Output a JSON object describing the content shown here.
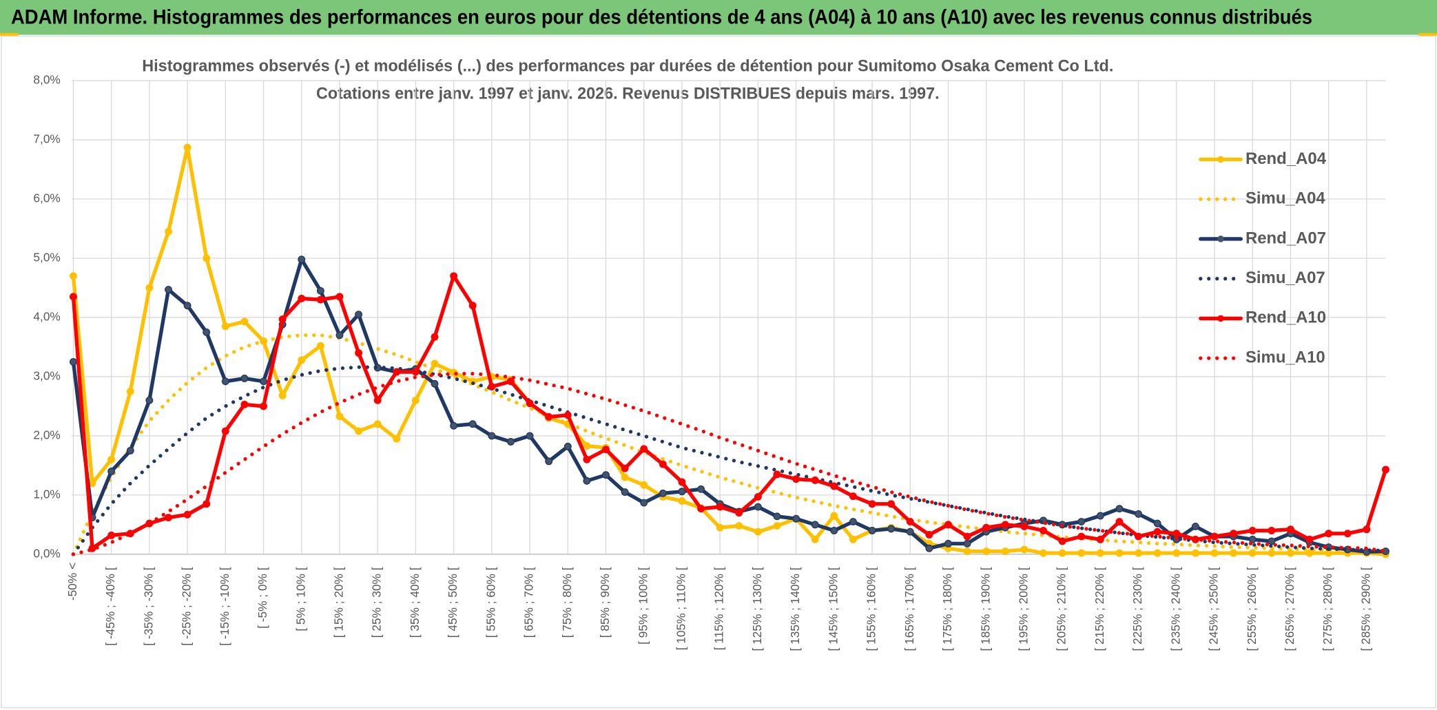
{
  "header": {
    "title": "ADAM Informe. Histogrammes des performances en euros pour des détentions de 4 ans (A04) à 10 ans (A10) avec les revenus connus distribués"
  },
  "chart_data": {
    "type": "line",
    "title": "Histogrammes observés (-) et modélisés (...) des performances par durées de détention pour Sumitomo Osaka Cement Co Ltd.",
    "subtitle": "Cotations entre janv. 1997 et janv. 2026. Revenus DISTRIBUES depuis mars. 1997.",
    "categories": [
      "-50% <",
      null,
      "[ -45% ; -40% [",
      null,
      "[ -35% ; -30% [",
      null,
      "[ -25% ; -20% [",
      null,
      "[ -15% ; -10% [",
      null,
      "[ -5% ; 0% [",
      null,
      "[ 5% ; 10% [",
      null,
      "[ 15% ; 20% [",
      null,
      "[ 25% ; 30% [",
      null,
      "[ 35% ; 40% [",
      null,
      "[ 45% ; 50% [",
      null,
      "[ 55% ; 60% [",
      null,
      "[ 65% ; 70% [",
      null,
      "[ 75% ; 80% [",
      null,
      "[ 85% ; 90% [",
      null,
      "[ 95% ; 100% [",
      null,
      "[ 105% ; 110% [",
      null,
      "[ 115% ; 120% [",
      null,
      "[ 125% ; 130% [",
      null,
      "[ 135% ; 140% [",
      null,
      "[ 145% ; 150% [",
      null,
      "[ 155% ; 160% [",
      null,
      "[ 165% ; 170% [",
      null,
      "[ 175% ; 180% [",
      null,
      "[ 185% ; 190% [",
      null,
      "[ 195% ; 200% [",
      null,
      "[ 205% ; 210% [",
      null,
      "[ 215% ; 220% [",
      null,
      "[ 225% ; 230% [",
      null,
      "[ 235% ; 240% [",
      null,
      "[ 245% ; 250% [",
      null,
      "[ 255% ; 260% [",
      null,
      "[ 265% ; 270% [",
      null,
      "[ 275% ; 280% [",
      null,
      "[ 285% ; 290% [",
      null
    ],
    "series": [
      {
        "name": "Rend_A04",
        "color": "#FFC000",
        "line_style": "solid",
        "markers": true,
        "values": [
          4.7,
          1.2,
          1.6,
          2.75,
          4.5,
          5.45,
          6.87,
          5.0,
          3.85,
          3.93,
          3.6,
          2.68,
          3.28,
          3.52,
          2.33,
          2.08,
          2.2,
          1.95,
          2.6,
          3.22,
          3.07,
          2.92,
          3.0,
          2.95,
          2.55,
          2.3,
          2.2,
          1.83,
          1.8,
          1.3,
          1.17,
          0.97,
          0.9,
          0.78,
          0.45,
          0.48,
          0.38,
          0.48,
          0.6,
          0.25,
          0.65,
          0.25,
          0.4,
          0.45,
          0.38,
          0.18,
          0.1,
          0.05,
          0.05,
          0.05,
          0.08,
          0.02,
          0.02,
          0.02,
          0.02,
          0.02,
          0.02,
          0.02,
          0.02,
          0.02,
          0.02,
          0.02,
          0.02,
          0.02,
          0.02,
          0.02,
          0.02,
          0.02,
          0.02,
          0
        ]
      },
      {
        "name": "Simu_A04",
        "color": "#FFC000",
        "line_style": "dotted",
        "markers": false,
        "values": [
          0,
          0.7,
          1.3,
          1.8,
          2.25,
          2.6,
          2.9,
          3.15,
          3.35,
          3.5,
          3.6,
          3.67,
          3.7,
          3.7,
          3.65,
          3.57,
          3.47,
          3.37,
          3.25,
          3.13,
          3.0,
          2.87,
          2.74,
          2.6,
          2.47,
          2.34,
          2.21,
          2.08,
          1.96,
          1.84,
          1.72,
          1.61,
          1.5,
          1.4,
          1.3,
          1.21,
          1.12,
          1.04,
          0.96,
          0.89,
          0.82,
          0.76,
          0.7,
          0.64,
          0.59,
          0.54,
          0.5,
          0.46,
          0.42,
          0.38,
          0.35,
          0.32,
          0.29,
          0.27,
          0.24,
          0.22,
          0.2,
          0.18,
          0.17,
          0.15,
          0.14,
          0.12,
          0.11,
          0.1,
          0.09,
          0.08,
          0.07,
          0.06,
          0.05,
          0.05
        ]
      },
      {
        "name": "Rend_A07",
        "color": "#1F3864",
        "line_style": "solid",
        "markers": true,
        "values": [
          3.25,
          0.62,
          1.4,
          1.75,
          2.6,
          4.47,
          4.2,
          3.75,
          2.92,
          2.97,
          2.92,
          3.88,
          4.98,
          4.45,
          3.7,
          4.05,
          3.15,
          3.08,
          3.13,
          2.88,
          2.17,
          2.2,
          2.0,
          1.9,
          2.0,
          1.57,
          1.82,
          1.24,
          1.34,
          1.05,
          0.87,
          1.03,
          1.06,
          1.1,
          0.85,
          0.72,
          0.8,
          0.64,
          0.6,
          0.5,
          0.4,
          0.55,
          0.4,
          0.43,
          0.38,
          0.1,
          0.18,
          0.18,
          0.38,
          0.45,
          0.52,
          0.57,
          0.5,
          0.55,
          0.65,
          0.77,
          0.68,
          0.52,
          0.25,
          0.47,
          0.3,
          0.3,
          0.25,
          0.22,
          0.35,
          0.2,
          0.12,
          0.08,
          0.04,
          0.05
        ]
      },
      {
        "name": "Simu_A07",
        "color": "#1F3864",
        "line_style": "dotted",
        "markers": false,
        "values": [
          0,
          0.45,
          0.85,
          1.2,
          1.5,
          1.78,
          2.05,
          2.3,
          2.5,
          2.67,
          2.82,
          2.94,
          3.03,
          3.1,
          3.14,
          3.16,
          3.16,
          3.14,
          3.1,
          3.04,
          2.97,
          2.89,
          2.8,
          2.7,
          2.6,
          2.5,
          2.4,
          2.3,
          2.2,
          2.1,
          2.0,
          1.9,
          1.8,
          1.72,
          1.64,
          1.56,
          1.49,
          1.42,
          1.35,
          1.28,
          1.21,
          1.14,
          1.07,
          1.0,
          0.94,
          0.88,
          0.82,
          0.76,
          0.7,
          0.64,
          0.59,
          0.54,
          0.49,
          0.44,
          0.4,
          0.36,
          0.32,
          0.29,
          0.26,
          0.23,
          0.2,
          0.18,
          0.16,
          0.14,
          0.12,
          0.1,
          0.09,
          0.08,
          0.07,
          0.06
        ]
      },
      {
        "name": "Rend_A10",
        "color": "#FF0000",
        "line_style": "solid",
        "markers": true,
        "values": [
          4.35,
          0.1,
          0.32,
          0.35,
          0.52,
          0.62,
          0.67,
          0.85,
          2.08,
          2.53,
          2.5,
          3.97,
          4.32,
          4.3,
          4.35,
          3.4,
          2.6,
          3.08,
          3.08,
          3.67,
          4.7,
          4.2,
          2.83,
          2.92,
          2.55,
          2.32,
          2.35,
          1.6,
          1.77,
          1.45,
          1.78,
          1.52,
          1.22,
          0.77,
          0.8,
          0.7,
          0.97,
          1.35,
          1.27,
          1.25,
          1.15,
          0.98,
          0.85,
          0.85,
          0.55,
          0.33,
          0.5,
          0.3,
          0.45,
          0.5,
          0.47,
          0.4,
          0.22,
          0.3,
          0.25,
          0.55,
          0.3,
          0.38,
          0.35,
          0.25,
          0.3,
          0.35,
          0.4,
          0.4,
          0.42,
          0.25,
          0.35,
          0.35,
          0.42,
          1.43
        ]
      },
      {
        "name": "Simu_A10",
        "color": "#FF0000",
        "line_style": "dotted",
        "markers": false,
        "values": [
          0,
          0.08,
          0.2,
          0.35,
          0.52,
          0.72,
          0.93,
          1.15,
          1.38,
          1.6,
          1.82,
          2.03,
          2.22,
          2.4,
          2.56,
          2.7,
          2.82,
          2.92,
          2.99,
          3.03,
          3.05,
          3.05,
          3.03,
          2.99,
          2.94,
          2.87,
          2.8,
          2.71,
          2.62,
          2.52,
          2.42,
          2.31,
          2.2,
          2.09,
          1.97,
          1.86,
          1.75,
          1.64,
          1.53,
          1.43,
          1.33,
          1.23,
          1.14,
          1.05,
          0.97,
          0.89,
          0.82,
          0.75,
          0.69,
          0.63,
          0.58,
          0.53,
          0.48,
          0.44,
          0.4,
          0.36,
          0.33,
          0.3,
          0.27,
          0.25,
          0.22,
          0.2,
          0.18,
          0.16,
          0.15,
          0.13,
          0.12,
          0.11,
          0.1,
          0.05
        ]
      }
    ],
    "ylim": [
      0,
      8
    ],
    "yticks": [
      {
        "value": 0,
        "label": "0,0%"
      },
      {
        "value": 1,
        "label": "1,0%"
      },
      {
        "value": 2,
        "label": "2,0%"
      },
      {
        "value": 3,
        "label": "3,0%"
      },
      {
        "value": 4,
        "label": "4,0%"
      },
      {
        "value": 5,
        "label": "5,0%"
      },
      {
        "value": 6,
        "label": "6,0%"
      },
      {
        "value": 7,
        "label": "7,0%"
      },
      {
        "value": 8,
        "label": "8,0%"
      }
    ],
    "grid": true,
    "legend": "right"
  }
}
